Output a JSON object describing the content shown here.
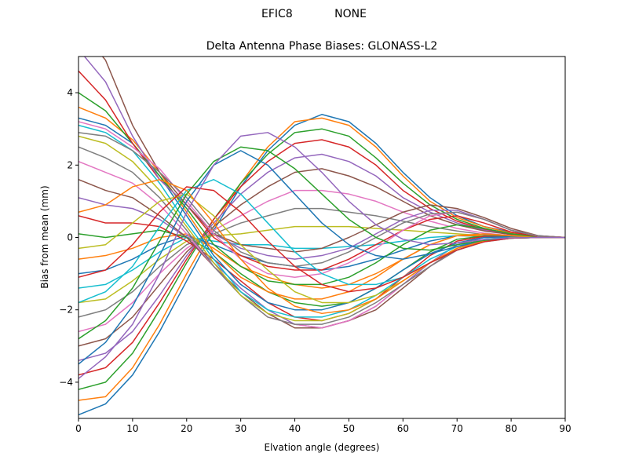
{
  "figure": {
    "suptitle": "EFIC8            NONE"
  },
  "chart_data": {
    "type": "line",
    "title": "Delta Antenna Phase Biases: GLONASS-L2",
    "xlabel": "Elvation angle (degrees)",
    "ylabel": "Bias from mean (mm)",
    "xlim": [
      0,
      90
    ],
    "ylim": [
      -5,
      5
    ],
    "xticks": [
      0,
      10,
      20,
      30,
      40,
      50,
      60,
      70,
      80,
      90
    ],
    "yticks": [
      -4,
      -2,
      0,
      2,
      4
    ],
    "grid": false,
    "legend": "none",
    "x": [
      0,
      5,
      10,
      15,
      20,
      25,
      30,
      35,
      40,
      45,
      50,
      55,
      60,
      65,
      70,
      75,
      80,
      85,
      90
    ],
    "colors": [
      "#1f77b4",
      "#ff7f0e",
      "#2ca02c",
      "#d62728",
      "#9467bd",
      "#8c564b",
      "#e377c2",
      "#7f7f7f",
      "#bcbd22",
      "#17becf"
    ],
    "series": [
      {
        "values": [
          -4.9,
          -4.6,
          -3.8,
          -2.6,
          -1.2,
          0.2,
          1.4,
          2.4,
          3.1,
          3.4,
          3.2,
          2.6,
          1.8,
          1.1,
          0.6,
          0.3,
          0.15,
          0.05,
          0
        ]
      },
      {
        "values": [
          -4.5,
          -4.4,
          -3.6,
          -2.4,
          -1.0,
          0.3,
          1.5,
          2.5,
          3.2,
          3.3,
          3.1,
          2.5,
          1.7,
          1.0,
          0.55,
          0.3,
          0.12,
          0.04,
          0
        ]
      },
      {
        "values": [
          -4.2,
          -4.0,
          -3.2,
          -2.0,
          -0.7,
          0.5,
          1.5,
          2.3,
          2.9,
          3.0,
          2.8,
          2.2,
          1.5,
          0.9,
          0.5,
          0.25,
          0.1,
          0.03,
          0
        ]
      },
      {
        "values": [
          -3.8,
          -3.6,
          -2.9,
          -1.8,
          -0.6,
          0.5,
          1.4,
          2.1,
          2.6,
          2.7,
          2.5,
          2.0,
          1.3,
          0.8,
          0.45,
          0.22,
          0.1,
          0.03,
          0
        ]
      },
      {
        "values": [
          -3.4,
          -3.2,
          -2.6,
          -1.6,
          -0.5,
          0.4,
          1.2,
          1.8,
          2.2,
          2.3,
          2.1,
          1.7,
          1.1,
          0.7,
          0.4,
          0.2,
          0.08,
          0.02,
          0
        ]
      },
      {
        "values": [
          -3.0,
          -2.8,
          -2.2,
          -1.3,
          -0.4,
          0.3,
          0.9,
          1.4,
          1.8,
          1.9,
          1.7,
          1.4,
          1.0,
          0.6,
          0.35,
          0.18,
          0.08,
          0.02,
          0
        ]
      },
      {
        "values": [
          -2.6,
          -2.4,
          -1.8,
          -1.0,
          -0.3,
          0.2,
          0.6,
          1.0,
          1.3,
          1.3,
          1.2,
          1.0,
          0.7,
          0.45,
          0.25,
          0.12,
          0.05,
          0.01,
          0
        ]
      },
      {
        "values": [
          -2.2,
          -2.0,
          -1.5,
          -0.8,
          -0.2,
          0.1,
          0.4,
          0.6,
          0.8,
          0.8,
          0.7,
          0.6,
          0.45,
          0.3,
          0.18,
          0.08,
          0.03,
          0.01,
          0
        ]
      },
      {
        "values": [
          -1.8,
          -1.7,
          -1.2,
          -0.6,
          -0.1,
          0.05,
          0.1,
          0.2,
          0.3,
          0.3,
          0.3,
          0.25,
          0.2,
          0.15,
          0.1,
          0.05,
          0.02,
          0.0,
          0
        ]
      },
      {
        "values": [
          -1.4,
          -1.3,
          -0.9,
          -0.4,
          0.0,
          -0.1,
          -0.2,
          -0.2,
          -0.3,
          -0.3,
          -0.25,
          -0.2,
          -0.1,
          0.0,
          0.05,
          0.03,
          0.01,
          0.0,
          0
        ]
      },
      {
        "values": [
          -1.0,
          -0.9,
          -0.6,
          -0.2,
          0.05,
          -0.2,
          -0.5,
          -0.7,
          -0.8,
          -0.9,
          -0.8,
          -0.6,
          -0.35,
          -0.1,
          0.05,
          0.04,
          0.02,
          0.0,
          0
        ]
      },
      {
        "values": [
          -0.6,
          -0.5,
          -0.3,
          0.0,
          0.1,
          -0.3,
          -0.8,
          -1.1,
          -1.3,
          -1.4,
          -1.3,
          -1.0,
          -0.6,
          -0.2,
          0.05,
          0.05,
          0.02,
          0.0,
          0
        ]
      },
      {
        "values": [
          0.1,
          0.0,
          0.1,
          0.2,
          0.0,
          -0.4,
          -1.0,
          -1.5,
          -1.8,
          -1.9,
          -1.8,
          -1.4,
          -0.9,
          -0.4,
          -0.05,
          0.04,
          0.03,
          0.0,
          0
        ]
      },
      {
        "values": [
          0.6,
          0.4,
          0.4,
          0.3,
          -0.1,
          -0.6,
          -1.2,
          -1.8,
          -2.2,
          -2.3,
          -2.1,
          -1.7,
          -1.1,
          -0.5,
          -0.1,
          0.03,
          0.02,
          0.0,
          0
        ]
      },
      {
        "values": [
          1.1,
          0.9,
          0.8,
          0.5,
          0.0,
          -0.7,
          -1.4,
          -2.0,
          -2.4,
          -2.5,
          -2.3,
          -1.9,
          -1.3,
          -0.7,
          -0.2,
          0.0,
          0.02,
          0.0,
          0
        ]
      },
      {
        "values": [
          1.6,
          1.3,
          1.1,
          0.6,
          0.0,
          -0.8,
          -1.5,
          -2.1,
          -2.5,
          -2.5,
          -2.3,
          -2.0,
          -1.4,
          -0.8,
          -0.3,
          -0.05,
          0.0,
          0.0,
          0
        ]
      },
      {
        "values": [
          2.1,
          1.8,
          1.5,
          0.9,
          0.1,
          -0.8,
          -1.6,
          -2.2,
          -2.4,
          -2.5,
          -2.3,
          -1.9,
          -1.3,
          -0.8,
          -0.35,
          -0.1,
          0.0,
          0.0,
          0
        ]
      },
      {
        "values": [
          2.5,
          2.2,
          1.8,
          1.1,
          0.2,
          -0.8,
          -1.6,
          -2.2,
          -2.4,
          -2.4,
          -2.2,
          -1.8,
          -1.3,
          -0.8,
          -0.35,
          -0.1,
          -0.02,
          0.0,
          0
        ]
      },
      {
        "values": [
          2.8,
          2.6,
          2.1,
          1.3,
          0.3,
          -0.7,
          -1.6,
          -2.1,
          -2.3,
          -2.3,
          -2.1,
          -1.7,
          -1.2,
          -0.7,
          -0.3,
          -0.08,
          -0.02,
          0.0,
          0
        ]
      },
      {
        "values": [
          3.1,
          2.9,
          2.4,
          1.5,
          0.4,
          -0.6,
          -1.5,
          -2.0,
          -2.2,
          -2.2,
          -2.0,
          -1.6,
          -1.1,
          -0.6,
          -0.25,
          -0.05,
          0.0,
          0.0,
          0
        ]
      },
      {
        "values": [
          3.3,
          3.1,
          2.6,
          1.7,
          0.6,
          -0.5,
          -1.3,
          -1.8,
          -2.0,
          -2.0,
          -1.8,
          -1.4,
          -0.9,
          -0.45,
          -0.15,
          0.0,
          0.02,
          0.0,
          0
        ]
      },
      {
        "values": [
          3.6,
          3.3,
          2.7,
          1.8,
          0.7,
          -0.4,
          -1.1,
          -1.5,
          -1.7,
          -1.7,
          -1.5,
          -1.1,
          -0.6,
          -0.2,
          0.05,
          0.1,
          0.05,
          0.01,
          0
        ]
      },
      {
        "values": [
          4.0,
          3.5,
          2.6,
          1.7,
          0.8,
          -0.2,
          -0.8,
          -1.2,
          -1.3,
          -1.3,
          -1.1,
          -0.7,
          -0.2,
          0.2,
          0.35,
          0.25,
          0.1,
          0.02,
          0
        ]
      },
      {
        "values": [
          4.6,
          3.8,
          2.6,
          1.6,
          0.9,
          0.0,
          -0.5,
          -0.8,
          -0.9,
          -0.9,
          -0.6,
          -0.2,
          0.2,
          0.5,
          0.6,
          0.4,
          0.15,
          0.03,
          0
        ]
      },
      {
        "values": [
          5.2,
          4.3,
          2.8,
          1.6,
          0.9,
          0.1,
          -0.3,
          -0.5,
          -0.6,
          -0.5,
          -0.3,
          0.1,
          0.5,
          0.75,
          0.75,
          0.5,
          0.2,
          0.04,
          0
        ]
      },
      {
        "values": [
          5.8,
          4.9,
          3.1,
          1.8,
          0.9,
          0.1,
          -0.2,
          -0.3,
          -0.4,
          -0.3,
          0.0,
          0.35,
          0.7,
          0.9,
          0.8,
          0.55,
          0.25,
          0.05,
          0
        ]
      },
      {
        "values": [
          3.2,
          3.0,
          2.5,
          1.9,
          1.0,
          0.1,
          -0.6,
          -1.0,
          -1.1,
          -1.0,
          -0.7,
          -0.3,
          0.2,
          0.6,
          0.7,
          0.5,
          0.2,
          0.04,
          0
        ]
      },
      {
        "values": [
          2.9,
          2.8,
          2.4,
          1.8,
          1.1,
          0.2,
          -0.4,
          -0.7,
          -0.8,
          -0.7,
          -0.4,
          0.0,
          0.4,
          0.65,
          0.7,
          0.5,
          0.2,
          0.04,
          0
        ]
      },
      {
        "values": [
          -0.3,
          -0.2,
          0.4,
          1.0,
          1.2,
          0.6,
          -0.2,
          -0.9,
          -1.5,
          -1.8,
          -1.8,
          -1.6,
          -1.2,
          -0.7,
          -0.3,
          -0.1,
          0.0,
          0.0,
          0
        ]
      },
      {
        "values": [
          -1.8,
          -1.5,
          -0.8,
          0.3,
          1.3,
          1.6,
          1.2,
          0.4,
          -0.4,
          -1.0,
          -1.3,
          -1.3,
          -1.1,
          -0.7,
          -0.35,
          -0.12,
          -0.02,
          0.0,
          0
        ]
      },
      {
        "values": [
          -3.5,
          -2.9,
          -1.9,
          -0.5,
          1.0,
          2.0,
          2.4,
          2.0,
          1.2,
          0.4,
          -0.2,
          -0.5,
          -0.6,
          -0.45,
          -0.25,
          -0.1,
          -0.02,
          0.0,
          0
        ]
      },
      {
        "values": [
          0.7,
          0.9,
          1.4,
          1.6,
          1.3,
          0.4,
          -0.6,
          -1.4,
          -1.9,
          -2.1,
          -2.0,
          -1.7,
          -1.2,
          -0.7,
          -0.3,
          -0.1,
          -0.02,
          0.0,
          0
        ]
      },
      {
        "values": [
          -2.8,
          -2.3,
          -1.4,
          -0.1,
          1.2,
          2.1,
          2.5,
          2.4,
          1.9,
          1.2,
          0.5,
          0.0,
          -0.3,
          -0.35,
          -0.2,
          -0.08,
          -0.02,
          0.0,
          0
        ]
      },
      {
        "values": [
          -1.1,
          -0.9,
          -0.2,
          0.7,
          1.4,
          1.3,
          0.7,
          -0.1,
          -0.8,
          -1.3,
          -1.5,
          -1.4,
          -1.1,
          -0.7,
          -0.35,
          -0.12,
          -0.02,
          0.0,
          0
        ]
      },
      {
        "values": [
          -3.9,
          -3.3,
          -2.4,
          -1.0,
          0.7,
          2.0,
          2.8,
          2.9,
          2.5,
          1.8,
          1.0,
          0.35,
          -0.05,
          -0.2,
          -0.15,
          -0.06,
          -0.01,
          0.0,
          0
        ]
      }
    ]
  }
}
